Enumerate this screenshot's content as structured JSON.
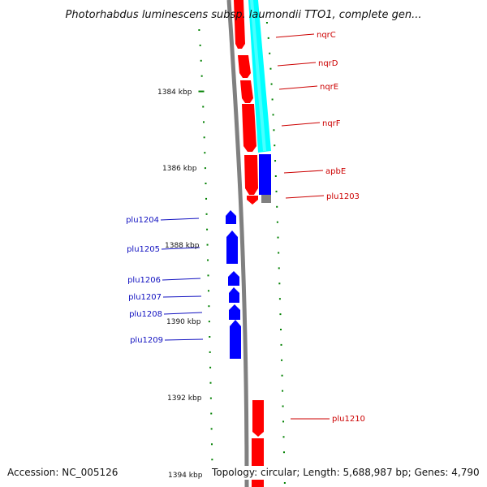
{
  "title": "Photorhabdus luminescens subsp. laumondii TTO1, complete gen...",
  "accession": "Accession: NC_005126",
  "summary": "Topology: circular; Length: 5,688,987 bp; Genes: 4,790",
  "colors": {
    "forward_gene": "#ff0000",
    "reverse_gene": "#0000ff",
    "cds_track": "#00ffff",
    "backbone": "#808080",
    "tick": "#008000",
    "forward_label": "#cc0000",
    "reverse_label": "#1010c0"
  },
  "scale_labels": [
    "1384 kbp",
    "1386 kbp",
    "1388 kbp",
    "1390 kbp",
    "1392 kbp",
    "1394 kbp"
  ],
  "forward_genes": [
    {
      "name": "nqrC"
    },
    {
      "name": "nqrD"
    },
    {
      "name": "nqrE"
    },
    {
      "name": "nqrF"
    },
    {
      "name": "apbE"
    },
    {
      "name": "plu1203"
    },
    {
      "name": "plu1210"
    }
  ],
  "reverse_genes": [
    {
      "name": "plu1204"
    },
    {
      "name": "plu1205"
    },
    {
      "name": "plu1206"
    },
    {
      "name": "plu1207"
    },
    {
      "name": "plu1208"
    },
    {
      "name": "plu1209"
    }
  ]
}
